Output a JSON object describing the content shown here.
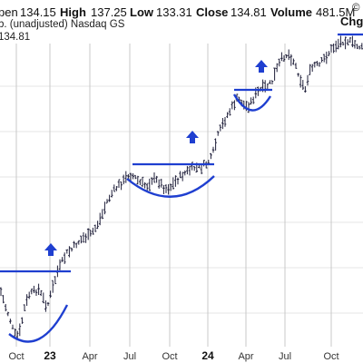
{
  "header": {
    "open_label": "pen",
    "open_value": "134.15",
    "high_label": "High",
    "high_value": "137.25",
    "low_label": "Low",
    "low_value": "133.31",
    "close_label": "Close",
    "close_value": "134.81",
    "volume_label": "Volume",
    "volume_value": "481.5M",
    "chg_label": "Chg",
    "subtitle": "b. (unadjusted)  Nasdaq GS",
    "last_price": "134.81",
    "corner_mark": "©"
  },
  "colors": {
    "bars": "#1f1f3a",
    "pattern": "#1f3fd0",
    "arrow": "#1f3fd0",
    "resistance": "#1f3fd0",
    "grid_vertical": "#c8c8c8",
    "grid_horizontal": "#e4e4e4"
  },
  "chart_data": {
    "type": "ohlc",
    "y_axis_ticks_visible": false,
    "x_tick_labels": [
      "Oct",
      "23",
      "Apr",
      "Jul",
      "Oct",
      "24",
      "Apr",
      "Jul",
      "Oct"
    ],
    "x_tick_months": [
      "2022-10",
      "2023-01",
      "2023-04",
      "2023-07",
      "2023-10",
      "2024-01",
      "2024-04",
      "2024-07",
      "2024-10"
    ],
    "grid": true,
    "annotations": [
      {
        "type": "resistance_line",
        "label": "",
        "start": "2022-08",
        "end": "2023-01"
      },
      {
        "type": "cup",
        "start": "2022-10",
        "end": "2023-01"
      },
      {
        "type": "breakout_arrow",
        "date": "2023-01"
      },
      {
        "type": "resistance_line",
        "start": "2023-07",
        "end": "2023-12"
      },
      {
        "type": "cup",
        "start": "2023-07",
        "end": "2023-12"
      },
      {
        "type": "breakout_arrow",
        "date": "2023-11"
      },
      {
        "type": "resistance_line",
        "start": "2024-04",
        "end": "2024-06"
      },
      {
        "type": "cup",
        "start": "2024-04",
        "end": "2024-06"
      },
      {
        "type": "breakout_arrow",
        "date": "2024-05"
      },
      {
        "type": "resistance_line",
        "start": "2024-10",
        "end": "2024-12"
      }
    ]
  }
}
